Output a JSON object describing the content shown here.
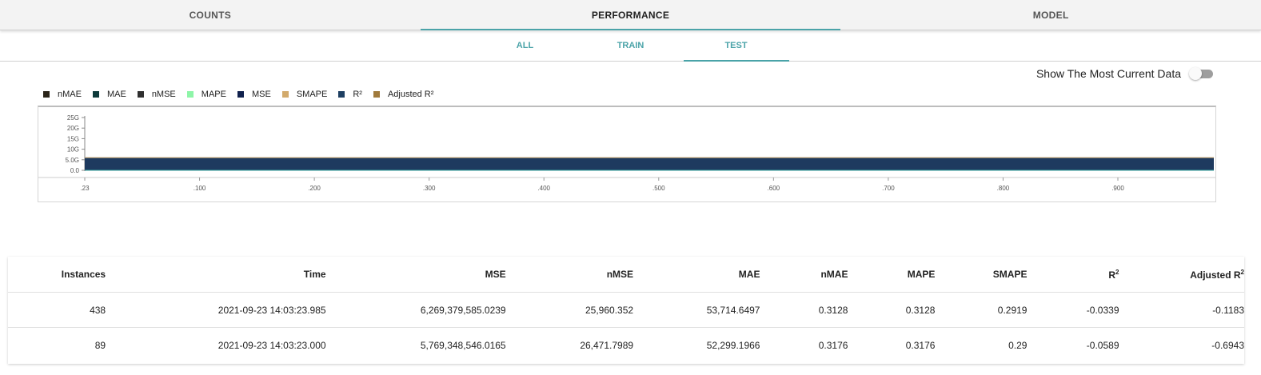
{
  "top_tabs": [
    "COUNTS",
    "PERFORMANCE",
    "MODEL"
  ],
  "top_active": 1,
  "sub_tabs": [
    "ALL",
    "TRAIN",
    "TEST"
  ],
  "sub_active": 2,
  "toggle": {
    "label": "Show The Most Current Data",
    "on": false
  },
  "legend": [
    {
      "label": "nMAE",
      "color": "#2b2519"
    },
    {
      "label": "MAE",
      "color": "#0e3a3a"
    },
    {
      "label": "nMSE",
      "color": "#2f2f2f"
    },
    {
      "label": "MAPE",
      "color": "#8ef5a8"
    },
    {
      "label": "MSE",
      "color": "#10214d"
    },
    {
      "label": "SMAPE",
      "color": "#d2aa6c"
    },
    {
      "label": "R²",
      "color": "#1e3f62"
    },
    {
      "label": "Adjusted R²",
      "color": "#a07a3c"
    }
  ],
  "chart_data": {
    "type": "area",
    "x_tick_labels": [
      ".23",
      ".100",
      ".200",
      ".300",
      ".400",
      ".500",
      ".600",
      ".700",
      ".800",
      ".900"
    ],
    "y_tick_labels": [
      "25G",
      "20G",
      "15G",
      "10G",
      "5.0G",
      "0.0"
    ],
    "ylim": [
      0,
      25000000000
    ],
    "series": [
      {
        "name": "MSE",
        "y": 6000000000
      }
    ]
  },
  "table": {
    "headers": [
      "Instances",
      "Time",
      "MSE",
      "nMSE",
      "MAE",
      "nMAE",
      "MAPE",
      "SMAPE",
      "R²",
      "Adjusted R²"
    ],
    "rows": [
      [
        "438",
        "2021-09-23 14:03:23.985",
        "6,269,379,585.0239",
        "25,960.352",
        "53,714.6497",
        "0.3128",
        "0.3128",
        "0.2919",
        "-0.0339",
        "-0.1183"
      ],
      [
        "89",
        "2021-09-23 14:03:23.000",
        "5,769,348,546.0165",
        "26,471.7989",
        "52,299.1966",
        "0.3176",
        "0.3176",
        "0.29",
        "-0.0589",
        "-0.6943"
      ]
    ]
  }
}
